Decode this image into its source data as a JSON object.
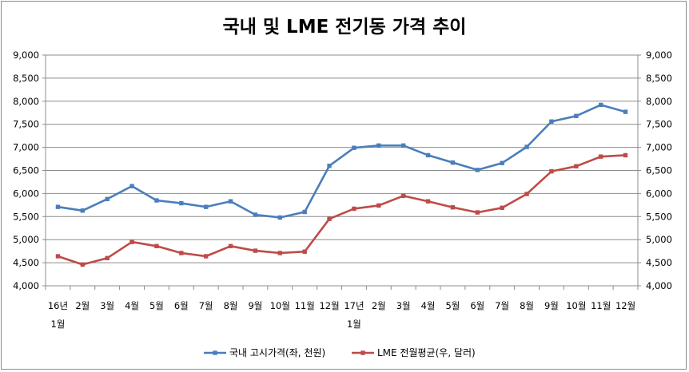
{
  "chart_data": {
    "type": "line",
    "title": "국내 및 LME 전기동 가격 추이",
    "categories": [
      [
        "16년",
        "1월"
      ],
      [
        "2월"
      ],
      [
        "3월"
      ],
      [
        "4월"
      ],
      [
        "5월"
      ],
      [
        "6월"
      ],
      [
        "7월"
      ],
      [
        "8월"
      ],
      [
        "9월"
      ],
      [
        "10월"
      ],
      [
        "11월"
      ],
      [
        "12월"
      ],
      [
        "17년",
        "1월"
      ],
      [
        "2월"
      ],
      [
        "3월"
      ],
      [
        "4월"
      ],
      [
        "5월"
      ],
      [
        "6월"
      ],
      [
        "7월"
      ],
      [
        "8월"
      ],
      [
        "9월"
      ],
      [
        "10월"
      ],
      [
        "11월"
      ],
      [
        "12월"
      ]
    ],
    "y_left": {
      "min": 4000,
      "max": 9000,
      "step": 500,
      "ticks": [
        "4,000",
        "4,500",
        "5,000",
        "5,500",
        "6,000",
        "6,500",
        "7,000",
        "7,500",
        "8,000",
        "8,500",
        "9,000"
      ]
    },
    "y_right": {
      "min": 4000,
      "max": 9000,
      "step": 500,
      "ticks": [
        "4,000",
        "4,500",
        "5,000",
        "5,500",
        "6,000",
        "6,500",
        "7,000",
        "7,500",
        "8,000",
        "8,500",
        "9,000"
      ]
    },
    "grid": true,
    "legend_position": "bottom",
    "series": [
      {
        "name": "국내 고시가격(좌, 천원)",
        "color": "#4a7ebb",
        "marker": "square",
        "axis": "left",
        "values": [
          5710,
          5630,
          5880,
          6160,
          5850,
          5790,
          5710,
          5830,
          5540,
          5480,
          5600,
          6600,
          6990,
          7040,
          7040,
          6830,
          6670,
          6510,
          6660,
          7010,
          7560,
          7680,
          7920,
          7770
        ]
      },
      {
        "name": "LME 전월평균(우, 달러)",
        "color": "#be4b48",
        "marker": "square",
        "axis": "right",
        "values": [
          4640,
          4460,
          4600,
          4950,
          4860,
          4710,
          4640,
          4860,
          4760,
          4710,
          4740,
          5450,
          5670,
          5740,
          5950,
          5830,
          5700,
          5590,
          5690,
          5990,
          6480,
          6590,
          6800,
          6830
        ]
      }
    ]
  }
}
